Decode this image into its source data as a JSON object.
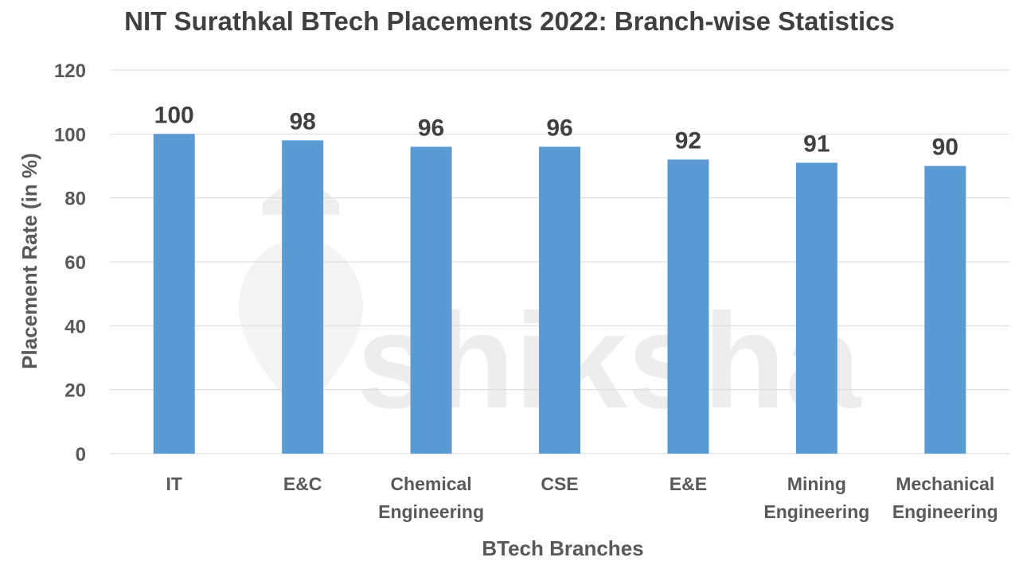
{
  "chart_data": {
    "type": "bar",
    "title": "NIT Surathkal BTech Placements 2022: Branch-wise Statistics",
    "xlabel": "BTech Branches",
    "ylabel": "Placement Rate (in %)",
    "categories": [
      [
        "IT"
      ],
      [
        "E&C"
      ],
      [
        "Chemical",
        "Engineering"
      ],
      [
        "CSE"
      ],
      [
        "E&E"
      ],
      [
        "Mining",
        "Engineering"
      ],
      [
        "Mechanical",
        "Engineering"
      ]
    ],
    "values": [
      100,
      98,
      96,
      96,
      92,
      91,
      90
    ],
    "data_labels": [
      "100",
      "98",
      "96",
      "96",
      "92",
      "91",
      "90"
    ],
    "ylim": [
      0,
      120
    ],
    "yticks": [
      0,
      20,
      40,
      60,
      80,
      100,
      120
    ],
    "grid": true,
    "legend": "none",
    "colors": {
      "bar": "#5b9bd5",
      "grid": "#d9d9d9"
    }
  },
  "watermark": {
    "text": "shiksha"
  }
}
